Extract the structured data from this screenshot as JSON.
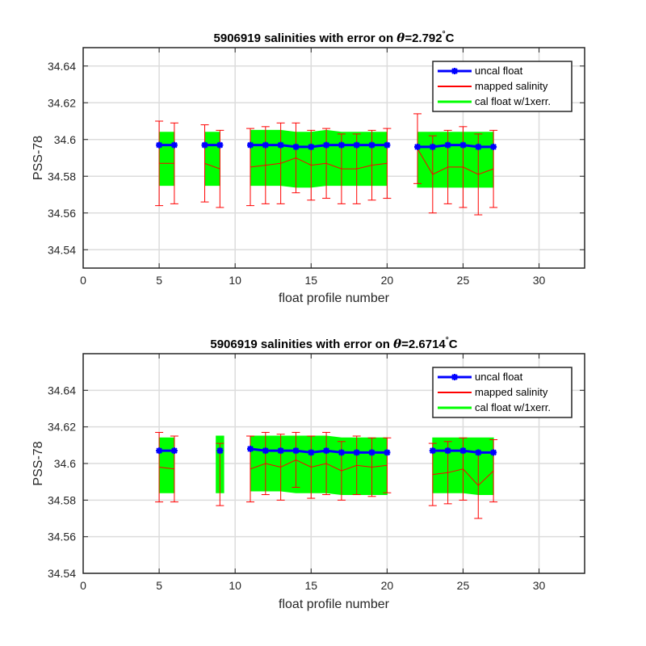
{
  "chart_data": [
    {
      "type": "line",
      "title_prefix": "5906919 salinities with error on ",
      "theta_symbol": "θ",
      "title_value": "=2.792",
      "degree_symbol": "°",
      "title_unit": "C",
      "xlabel": "float profile number",
      "ylabel": "PSS-78",
      "xlim": [
        0,
        33
      ],
      "ylim": [
        34.53,
        34.65
      ],
      "xticks": [
        0,
        5,
        10,
        15,
        20,
        25,
        30
      ],
      "yticks": [
        34.54,
        34.56,
        34.58,
        34.6,
        34.62,
        34.64
      ],
      "grid": true,
      "legend_position": "top-right",
      "legend": [
        "uncal float",
        "mapped salinity",
        "cal float w/1xerr."
      ],
      "colors": {
        "uncal": "#0000ff",
        "mapped": "#ff0000",
        "band": "#00ff00",
        "errorbar": "#ff0000"
      },
      "x": [
        5,
        6,
        8,
        9,
        11,
        12,
        13,
        14,
        15,
        16,
        17,
        18,
        19,
        20,
        22,
        23,
        24,
        25,
        26,
        27
      ],
      "uncal_float": [
        34.597,
        34.597,
        34.597,
        34.597,
        34.597,
        34.597,
        34.597,
        34.596,
        34.596,
        34.597,
        34.597,
        34.597,
        34.597,
        34.597,
        34.596,
        34.596,
        34.597,
        34.597,
        34.596,
        34.596
      ],
      "mapped_salinity": [
        34.587,
        34.587,
        34.587,
        34.584,
        34.585,
        34.586,
        34.587,
        34.59,
        34.586,
        34.587,
        34.584,
        34.584,
        34.586,
        34.587,
        34.595,
        34.581,
        34.585,
        34.585,
        34.581,
        34.584
      ],
      "mapped_error": [
        0.023,
        0.022,
        0.021,
        0.021,
        0.021,
        0.021,
        0.022,
        0.019,
        0.019,
        0.019,
        0.019,
        0.019,
        0.019,
        0.019,
        0.019,
        0.021,
        0.02,
        0.022,
        0.022,
        0.021
      ],
      "cal_float_upper": [
        34.604,
        34.604,
        34.604,
        34.604,
        34.605,
        34.605,
        34.605,
        34.604,
        34.604,
        34.605,
        34.604,
        34.604,
        34.604,
        34.604,
        34.604,
        34.604,
        34.604,
        34.604,
        34.604,
        34.604
      ],
      "cal_float_lower": [
        34.575,
        34.575,
        34.575,
        34.575,
        34.575,
        34.575,
        34.575,
        34.574,
        34.574,
        34.575,
        34.575,
        34.575,
        34.575,
        34.575,
        34.574,
        34.574,
        34.574,
        34.574,
        34.574,
        34.574
      ],
      "segments": [
        [
          0,
          1
        ],
        [
          2,
          3
        ],
        [
          4,
          13
        ],
        [
          14,
          19
        ]
      ]
    },
    {
      "type": "line",
      "title_prefix": "5906919 salinities with error on ",
      "theta_symbol": "θ",
      "title_value": "=2.6714",
      "degree_symbol": "°",
      "title_unit": "C",
      "xlabel": "float profile number",
      "ylabel": "PSS-78",
      "xlim": [
        0,
        33
      ],
      "ylim": [
        34.54,
        34.66
      ],
      "xticks": [
        0,
        5,
        10,
        15,
        20,
        25,
        30
      ],
      "yticks": [
        34.54,
        34.56,
        34.58,
        34.6,
        34.62,
        34.64
      ],
      "grid": true,
      "legend_position": "top-right",
      "legend": [
        "uncal float",
        "mapped salinity",
        "cal float w/1xerr."
      ],
      "colors": {
        "uncal": "#0000ff",
        "mapped": "#ff0000",
        "band": "#00ff00",
        "errorbar": "#ff0000"
      },
      "x": [
        5,
        6,
        9,
        11,
        12,
        13,
        14,
        15,
        16,
        17,
        18,
        19,
        20,
        23,
        24,
        25,
        26,
        27
      ],
      "uncal_float": [
        34.607,
        34.607,
        34.607,
        34.608,
        34.607,
        34.607,
        34.607,
        34.606,
        34.607,
        34.606,
        34.606,
        34.606,
        34.606,
        34.607,
        34.607,
        34.607,
        34.606,
        34.606
      ],
      "mapped_salinity": [
        34.598,
        34.597,
        34.594,
        34.597,
        34.6,
        34.598,
        34.602,
        34.598,
        34.6,
        34.596,
        34.599,
        34.598,
        34.599,
        34.594,
        34.595,
        34.597,
        34.588,
        34.596
      ],
      "mapped_error": [
        0.019,
        0.018,
        0.017,
        0.018,
        0.017,
        0.018,
        0.015,
        0.017,
        0.017,
        0.016,
        0.016,
        0.016,
        0.015,
        0.017,
        0.017,
        0.017,
        0.018,
        0.017
      ],
      "cal_float_upper": [
        34.614,
        34.614,
        34.615,
        34.615,
        34.615,
        34.615,
        34.615,
        34.615,
        34.615,
        34.614,
        34.614,
        34.614,
        34.614,
        34.614,
        34.614,
        34.614,
        34.614,
        34.614
      ],
      "cal_float_lower": [
        34.584,
        34.584,
        34.584,
        34.585,
        34.585,
        34.585,
        34.584,
        34.584,
        34.584,
        34.583,
        34.583,
        34.583,
        34.583,
        34.584,
        34.584,
        34.584,
        34.583,
        34.583
      ],
      "segments": [
        [
          0,
          1
        ],
        [
          2,
          2
        ],
        [
          3,
          12
        ],
        [
          13,
          17
        ]
      ]
    }
  ]
}
